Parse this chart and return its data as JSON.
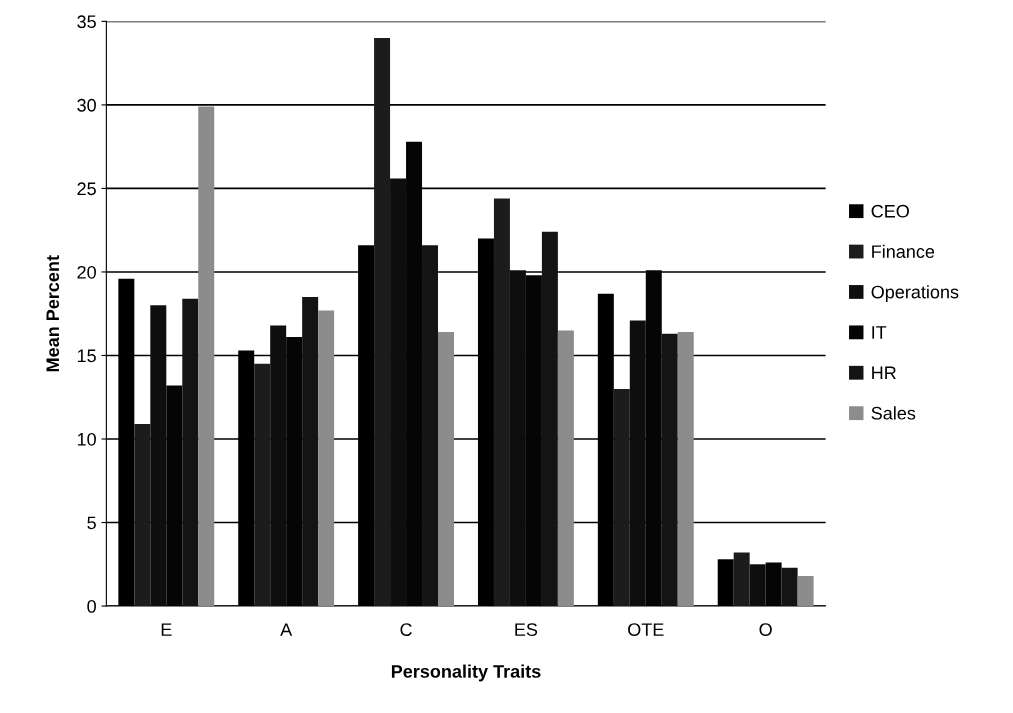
{
  "chart_data": {
    "type": "bar",
    "xlabel": "Personality Traits",
    "ylabel": "Mean Percent",
    "categories": [
      "E",
      "A",
      "C",
      "ES",
      "OTE",
      "O"
    ],
    "series": [
      {
        "name": "CEO",
        "color": "#000000",
        "values": [
          19.6,
          15.3,
          21.6,
          22.0,
          18.7,
          2.8
        ]
      },
      {
        "name": "Finance",
        "color": "#1c1c1c",
        "values": [
          10.9,
          14.5,
          34.0,
          24.4,
          13.0,
          3.2
        ]
      },
      {
        "name": "Operations",
        "color": "#0e0e0e",
        "values": [
          18.0,
          16.8,
          25.6,
          20.1,
          17.1,
          2.5
        ]
      },
      {
        "name": "IT",
        "color": "#050505",
        "values": [
          13.2,
          16.1,
          27.8,
          19.8,
          20.1,
          2.6
        ]
      },
      {
        "name": "HR",
        "color": "#141414",
        "values": [
          18.4,
          18.5,
          21.6,
          22.4,
          16.3,
          2.3
        ]
      },
      {
        "name": "Sales",
        "color": "#8c8c8c",
        "values": [
          29.9,
          17.7,
          16.4,
          16.5,
          16.4,
          1.8
        ]
      }
    ],
    "ylim": [
      0,
      35
    ],
    "yticks": [
      0,
      5,
      10,
      15,
      20,
      25,
      30,
      35
    ],
    "grid": "y",
    "legend": "right"
  }
}
